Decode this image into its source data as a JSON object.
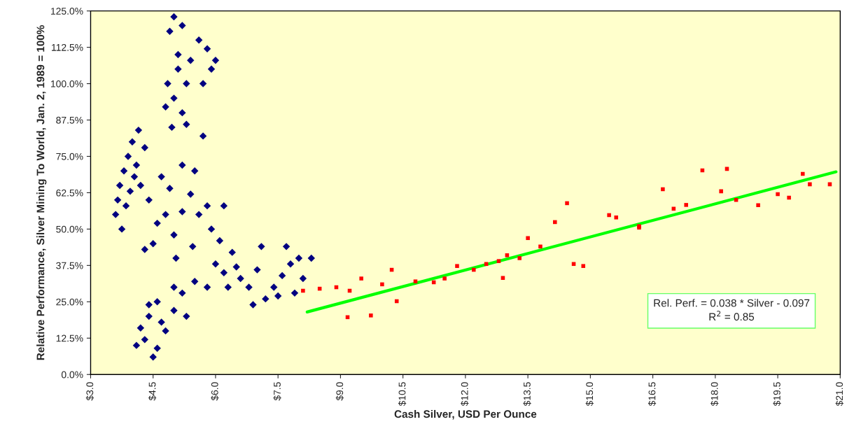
{
  "chart_data": {
    "type": "scatter",
    "xlabel": "Cash Silver, USD Per Ounce",
    "ylabel": "Relative Performance, Silver Mining To World, Jan. 2, 1989 = 100%",
    "xlim": [
      3.0,
      21.0
    ],
    "xticks": [
      {
        "value": 3.0,
        "label": "$3.0"
      },
      {
        "value": 4.5,
        "label": "$4.5"
      },
      {
        "value": 6.0,
        "label": "$6.0"
      },
      {
        "value": 7.5,
        "label": "$7.5"
      },
      {
        "value": 9.0,
        "label": "$9.0"
      },
      {
        "value": 10.5,
        "label": "$10.5"
      },
      {
        "value": 12.0,
        "label": "$12.0"
      },
      {
        "value": 13.5,
        "label": "$13.5"
      },
      {
        "value": 15.0,
        "label": "$15.0"
      },
      {
        "value": 16.5,
        "label": "$16.5"
      },
      {
        "value": 18.0,
        "label": "$18.0"
      },
      {
        "value": 19.5,
        "label": "$19.5"
      },
      {
        "value": 21.0,
        "label": "$21.0"
      }
    ],
    "ylim": [
      0,
      125
    ],
    "yticks": [
      {
        "value": 0,
        "label": "0.0%"
      },
      {
        "value": 12.5,
        "label": "12.5%"
      },
      {
        "value": 25,
        "label": "25.0%"
      },
      {
        "value": 37.5,
        "label": "37.5%"
      },
      {
        "value": 50,
        "label": "50.0%"
      },
      {
        "value": 62.5,
        "label": "62.5%"
      },
      {
        "value": 75,
        "label": "75.0%"
      },
      {
        "value": 87.5,
        "label": "87.5%"
      },
      {
        "value": 100,
        "label": "100.0%"
      },
      {
        "value": 112.5,
        "label": "112.5%"
      },
      {
        "value": 125,
        "label": "125.0%"
      }
    ],
    "grid": false,
    "legend": false,
    "annotations": [
      "Rel. Perf. = 0.038 * Silver - 0.097",
      "R$^{2}$ = 0.85"
    ],
    "series": [
      {
        "color": "#000080",
        "marker": "diamond",
        "x": [
          3.6,
          3.65,
          3.7,
          3.75,
          3.8,
          3.9,
          4.0,
          4.1,
          3.85,
          4.2,
          3.95,
          4.05,
          4.3,
          4.15,
          5.0,
          4.9,
          5.1,
          4.85,
          5.0,
          5.1,
          5.3,
          5.2,
          5.4,
          5.6,
          5.8,
          5.9,
          6.0,
          5.7,
          4.95,
          5.3,
          4.8,
          5.2,
          4.5,
          4.6,
          4.8,
          5.0,
          5.2,
          5.4,
          5.6,
          5.8,
          5.9,
          6.1,
          5.5,
          5.2,
          4.7,
          4.4,
          5.7,
          4.3,
          5.05,
          5.45,
          6.2,
          4.9,
          4.1,
          4.3,
          4.5,
          4.6,
          4.8,
          4.4,
          4.6,
          5.0,
          5.2,
          5.0,
          5.5,
          4.4,
          4.7,
          5.3,
          4.2,
          5.8,
          6.0,
          6.2,
          6.4,
          6.6,
          6.8,
          7.0,
          7.2,
          7.4,
          7.6,
          7.8,
          8.0,
          8.3,
          6.9,
          7.5,
          7.9,
          6.3,
          7.1,
          7.7,
          6.5,
          8.1
        ],
        "values": [
          55,
          60,
          65,
          50,
          70,
          75,
          80,
          72,
          58,
          65,
          63,
          68,
          78,
          84,
          123,
          118,
          110,
          100,
          95,
          105,
          100,
          90,
          108,
          115,
          112,
          105,
          108,
          100,
          85,
          86,
          92,
          120,
          45,
          52,
          55,
          48,
          56,
          62,
          55,
          58,
          50,
          46,
          70,
          72,
          68,
          60,
          82,
          43,
          40,
          44,
          58,
          64,
          10,
          12,
          6,
          9,
          15,
          20,
          25,
          22,
          28,
          30,
          32,
          24,
          18,
          20,
          16,
          30,
          38,
          35,
          42,
          33,
          30,
          36,
          26,
          30,
          34,
          38,
          40,
          40,
          24,
          27,
          28,
          30,
          44,
          44,
          37,
          33
        ]
      },
      {
        "color": "#ff0000",
        "marker": "square",
        "x": [
          8.1,
          8.5,
          8.9,
          9.22,
          10.23,
          9.17,
          9.73,
          10.35,
          9.5,
          10.0,
          11.24,
          11.8,
          12.8,
          12.9,
          13.5,
          14.44,
          14.15,
          14.83,
          16.17,
          15.45,
          14.6,
          12.2,
          12.5,
          13.0,
          13.3,
          11.5,
          10.8,
          13.8,
          15.62,
          16.74,
          17.69,
          18.28,
          19.03,
          20.1,
          20.75,
          19.77,
          20.27,
          16.17,
          17.3,
          18.14,
          17.0,
          18.5,
          19.5
        ],
        "values": [
          28.8,
          29.5,
          30,
          28.8,
          36,
          19.7,
          20.3,
          25.2,
          33,
          31,
          31.7,
          37.3,
          39,
          33.2,
          46.9,
          58.9,
          52.4,
          37.3,
          51,
          54.8,
          38,
          36,
          38,
          41,
          40,
          33,
          32,
          44,
          54,
          63.7,
          70.2,
          70.7,
          58.2,
          69,
          65.4,
          60.8,
          65.4,
          50.5,
          58.3,
          63,
          57,
          60,
          62
        ]
      },
      {
        "type": "line",
        "color": "#00ff00",
        "x": [
          8.2,
          20.9
        ],
        "values": [
          21.5,
          69.7
        ]
      }
    ]
  }
}
